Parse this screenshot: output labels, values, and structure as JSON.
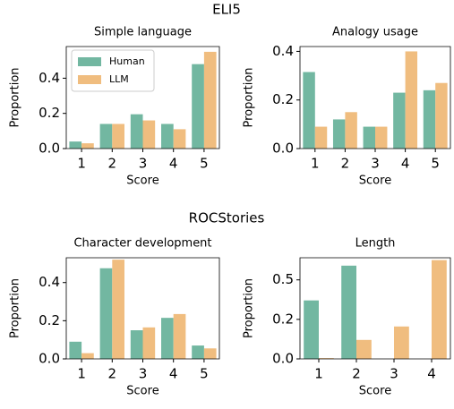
{
  "section_titles": [
    "ELI5",
    "ROCStories"
  ],
  "chart_data": [
    {
      "type": "bar",
      "title": "Simple language",
      "xlabel": "Score",
      "ylabel": "Proportion",
      "categories": [
        "1",
        "2",
        "3",
        "4",
        "5"
      ],
      "series": [
        {
          "name": "Human",
          "color": "#72b7a1",
          "values": [
            0.04,
            0.14,
            0.195,
            0.14,
            0.48
          ]
        },
        {
          "name": "LLM",
          "color": "#f0bd7f",
          "values": [
            0.03,
            0.14,
            0.16,
            0.11,
            0.55
          ]
        }
      ],
      "ylim": [
        0,
        0.58
      ],
      "yticks": [
        {
          "value": 0,
          "label": "0.0"
        },
        0.2,
        0.4
      ],
      "legend": "upper left"
    },
    {
      "type": "bar",
      "title": "Analogy usage",
      "xlabel": "Score",
      "ylabel": "Proportion",
      "categories": [
        "1",
        "2",
        "3",
        "4",
        "5"
      ],
      "series": [
        {
          "color": "#72b7a1",
          "values": [
            0.315,
            0.12,
            0.09,
            0.23,
            0.24
          ]
        },
        {
          "color": "#f0bd7f",
          "values": [
            0.09,
            0.15,
            0.09,
            0.4,
            0.27
          ]
        }
      ],
      "ylim": [
        0,
        0.42
      ],
      "yticks": [
        {
          "value": 0,
          "label": "0.0"
        },
        0.2,
        0.4
      ]
    },
    {
      "type": "bar",
      "title": "Character development",
      "xlabel": "Score",
      "ylabel": "Proportion",
      "categories": [
        "1",
        "2",
        "3",
        "4",
        "5"
      ],
      "series": [
        {
          "color": "#72b7a1",
          "values": [
            0.09,
            0.475,
            0.15,
            0.215,
            0.07
          ]
        },
        {
          "color": "#f0bd7f",
          "values": [
            0.03,
            0.52,
            0.165,
            0.235,
            0.055
          ]
        }
      ],
      "ylim": [
        0,
        0.53
      ],
      "yticks": [
        {
          "value": 0,
          "label": "0.0"
        },
        0.2,
        0.4
      ]
    },
    {
      "type": "bar",
      "title": "Length",
      "xlabel": "Score",
      "ylabel": "Proportion",
      "categories": [
        "1",
        "2",
        "3",
        "4"
      ],
      "series": [
        {
          "color": "#72b7a1",
          "values": [
            0.37,
            0.59,
            0,
            0
          ]
        },
        {
          "color": "#f0bd7f",
          "values": [
            0.005,
            0.12,
            0.205,
            0.625
          ]
        }
      ],
      "ylim": [
        0,
        0.64
      ],
      "yticks": [
        {
          "value": 0,
          "label": "0.0"
        },
        {
          "value": 0.25,
          "label": "0.2"
        },
        0.5
      ]
    }
  ]
}
